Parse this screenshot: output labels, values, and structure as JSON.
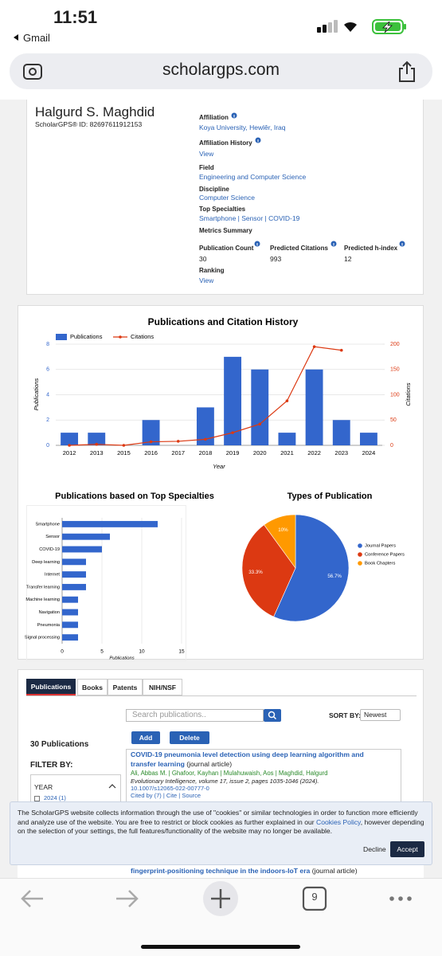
{
  "status_bar": {
    "time": "11:51",
    "back_app": "Gmail"
  },
  "browser": {
    "url": "scholargps.com",
    "tab_count": "9"
  },
  "profile": {
    "name": "Halgurd S. Maghdid",
    "id_label": "ScholarGPS® ID: 82697611912153",
    "affiliation_label": "Affiliation",
    "affiliation": "Koya University, Hewlêr, Iraq",
    "affiliation_history_label": "Affiliation History",
    "affiliation_history_link": "View",
    "field_label": "Field",
    "field": "Engineering and Computer Science",
    "discipline_label": "Discipline",
    "discipline": "Computer Science",
    "top_specialties_label": "Top Specialties",
    "top_specialties": "Smartphone | Sensor | COVID-19",
    "metrics_label": "Metrics Summary",
    "metrics": [
      {
        "label": "Publication Count",
        "value": "30"
      },
      {
        "label": "Predicted Citations",
        "value": "993"
      },
      {
        "label": "Predicted h-index",
        "value": "12"
      }
    ],
    "ranking_label": "Ranking",
    "ranking_link": "View"
  },
  "chart_data": [
    {
      "type": "combo",
      "title": "Publications and Citation History",
      "categories": [
        "2012",
        "2013",
        "2015",
        "2016",
        "2017",
        "2018",
        "2019",
        "2020",
        "2021",
        "2022",
        "2023",
        "2024"
      ],
      "series": [
        {
          "name": "Publications",
          "type": "bar",
          "color": "#3366cc",
          "values": [
            1,
            1,
            0,
            2,
            0,
            3,
            7,
            6,
            1,
            6,
            2,
            1
          ]
        },
        {
          "name": "Citations",
          "type": "line",
          "axis": "y2",
          "color": "#dc3912",
          "values": [
            0,
            2,
            0,
            7,
            8,
            12,
            25,
            42,
            88,
            195,
            188,
            null
          ]
        }
      ],
      "ylim": [
        0,
        8
      ],
      "yticks": [
        0,
        2,
        4,
        6,
        8
      ],
      "y2lim": [
        0,
        200
      ],
      "y2ticks": [
        0,
        50,
        100,
        150,
        200
      ],
      "xlabel": "Year",
      "ylabel": "Publications",
      "y2label": "Citations",
      "grid": true,
      "legend": "top-left"
    },
    {
      "type": "barh",
      "title": "Publications based on Top Specialties",
      "categories": [
        "Smartphone",
        "Sensor",
        "COVID-19",
        "Deep learning",
        "Internet",
        "Transfer learning",
        "Machine learning",
        "Navigation",
        "Pneumonia",
        "Signal processing"
      ],
      "values": [
        12,
        6,
        5,
        3,
        3,
        3,
        2,
        2,
        2,
        2
      ],
      "color": "#3366cc",
      "xlim": [
        0,
        15
      ],
      "xticks": [
        0,
        5,
        10,
        15
      ],
      "xlabel": "Publications",
      "grid": true
    },
    {
      "type": "pie",
      "title": "Types of Publication",
      "categories": [
        "Journal Papers",
        "Conference Papers",
        "Book Chapters"
      ],
      "values": [
        56.7,
        33.3,
        10
      ],
      "value_labels": [
        "56.7%",
        "33.3%",
        "10%"
      ],
      "colors": [
        "#3366cc",
        "#dc3912",
        "#ff9900"
      ],
      "legend": "right"
    }
  ],
  "publications": {
    "tabs": [
      "Publications",
      "Books",
      "Patents",
      "NIH/NSF"
    ],
    "search_placeholder": "Search publications..",
    "sort_label": "SORT BY:",
    "sort_value": "Newest",
    "add": "Add",
    "delete": "Delete",
    "count": "30 Publications",
    "filter_label": "FILTER BY:",
    "year_label": "YEAR",
    "year_option": "2024 (1)",
    "items": [
      {
        "title": "COVID-19 pneumonia level detection using deep learning algorithm and transfer learning",
        "kind": "(journal article)",
        "authors": "Ali, Abbas M. | Ghafoor, Kayhan | Mulahuwaish, Aos | Maghdid, Halgurd",
        "venue": "Evolutionary Intelligence, volume 17, issue 2, pages 1035-1046 (2024).",
        "doi": "10.1007/s12065-022-00777-0",
        "links": "Cited by (7) | Cite | Source"
      },
      {
        "title": "fingerprint-positioning technique in the indoors-IoT era",
        "kind": "(journal article)"
      }
    ]
  },
  "cookie_banner": {
    "text_before": "The ScholarGPS website collects information through the use of \"cookies\" or similar technologies in order to function more efficiently and analyze use of the website. You are free to restrict or block cookies as further explained in our ",
    "link": "Cookies Policy",
    "text_after": ", however depending on the selection of your settings, the full features/functionality of the website may no longer be available.",
    "decline": "Decline",
    "accept": "Accept"
  }
}
